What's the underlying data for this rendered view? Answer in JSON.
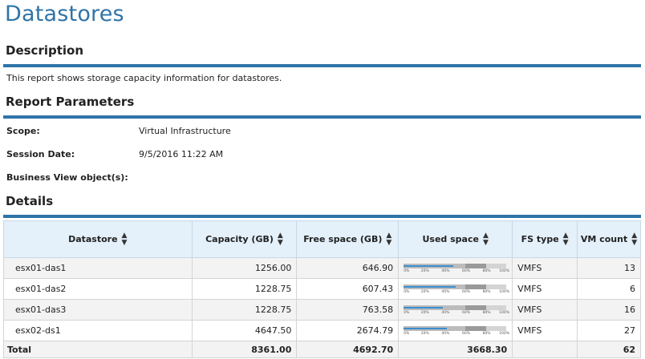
{
  "page": {
    "title": "Datastores"
  },
  "description": {
    "header": "Description",
    "text": "This report shows storage capacity information for datastores."
  },
  "parameters": {
    "header": "Report Parameters",
    "items": [
      {
        "label": "Scope:",
        "value": "Virtual Infrastructure"
      },
      {
        "label": "Session Date:",
        "value": "9/5/2016 11:22 AM"
      },
      {
        "label": "Business View object(s):",
        "value": ""
      }
    ]
  },
  "details": {
    "header": "Details",
    "columns": [
      "Datastore",
      "Capacity (GB)",
      "Free space (GB)",
      "Used space",
      "FS type",
      "VM count"
    ],
    "rows": [
      {
        "datastore": "esx01-das1",
        "capacity": "1256.00",
        "free": "646.90",
        "used_fraction": 0.485,
        "fs_type": "VMFS",
        "vm_count": "13"
      },
      {
        "datastore": "esx01-das2",
        "capacity": "1228.75",
        "free": "607.43",
        "used_fraction": 0.506,
        "fs_type": "VMFS",
        "vm_count": "6"
      },
      {
        "datastore": "esx01-das3",
        "capacity": "1228.75",
        "free": "763.58",
        "used_fraction": 0.379,
        "fs_type": "VMFS",
        "vm_count": "16"
      },
      {
        "datastore": "esx02-ds1",
        "capacity": "4647.50",
        "free": "2674.79",
        "used_fraction": 0.424,
        "fs_type": "VMFS",
        "vm_count": "27"
      }
    ],
    "bar_ticks": [
      "0%",
      "20%",
      "40%",
      "60%",
      "80%",
      "100%"
    ],
    "total": {
      "label": "Total",
      "capacity": "8361.00",
      "free": "4692.70",
      "used": "3668.30",
      "vm_count": "62"
    }
  },
  "colors": {
    "accent": "#2f74a8",
    "header_bg": "#e4f0fa",
    "bar_fill": "#3b8fd0"
  }
}
